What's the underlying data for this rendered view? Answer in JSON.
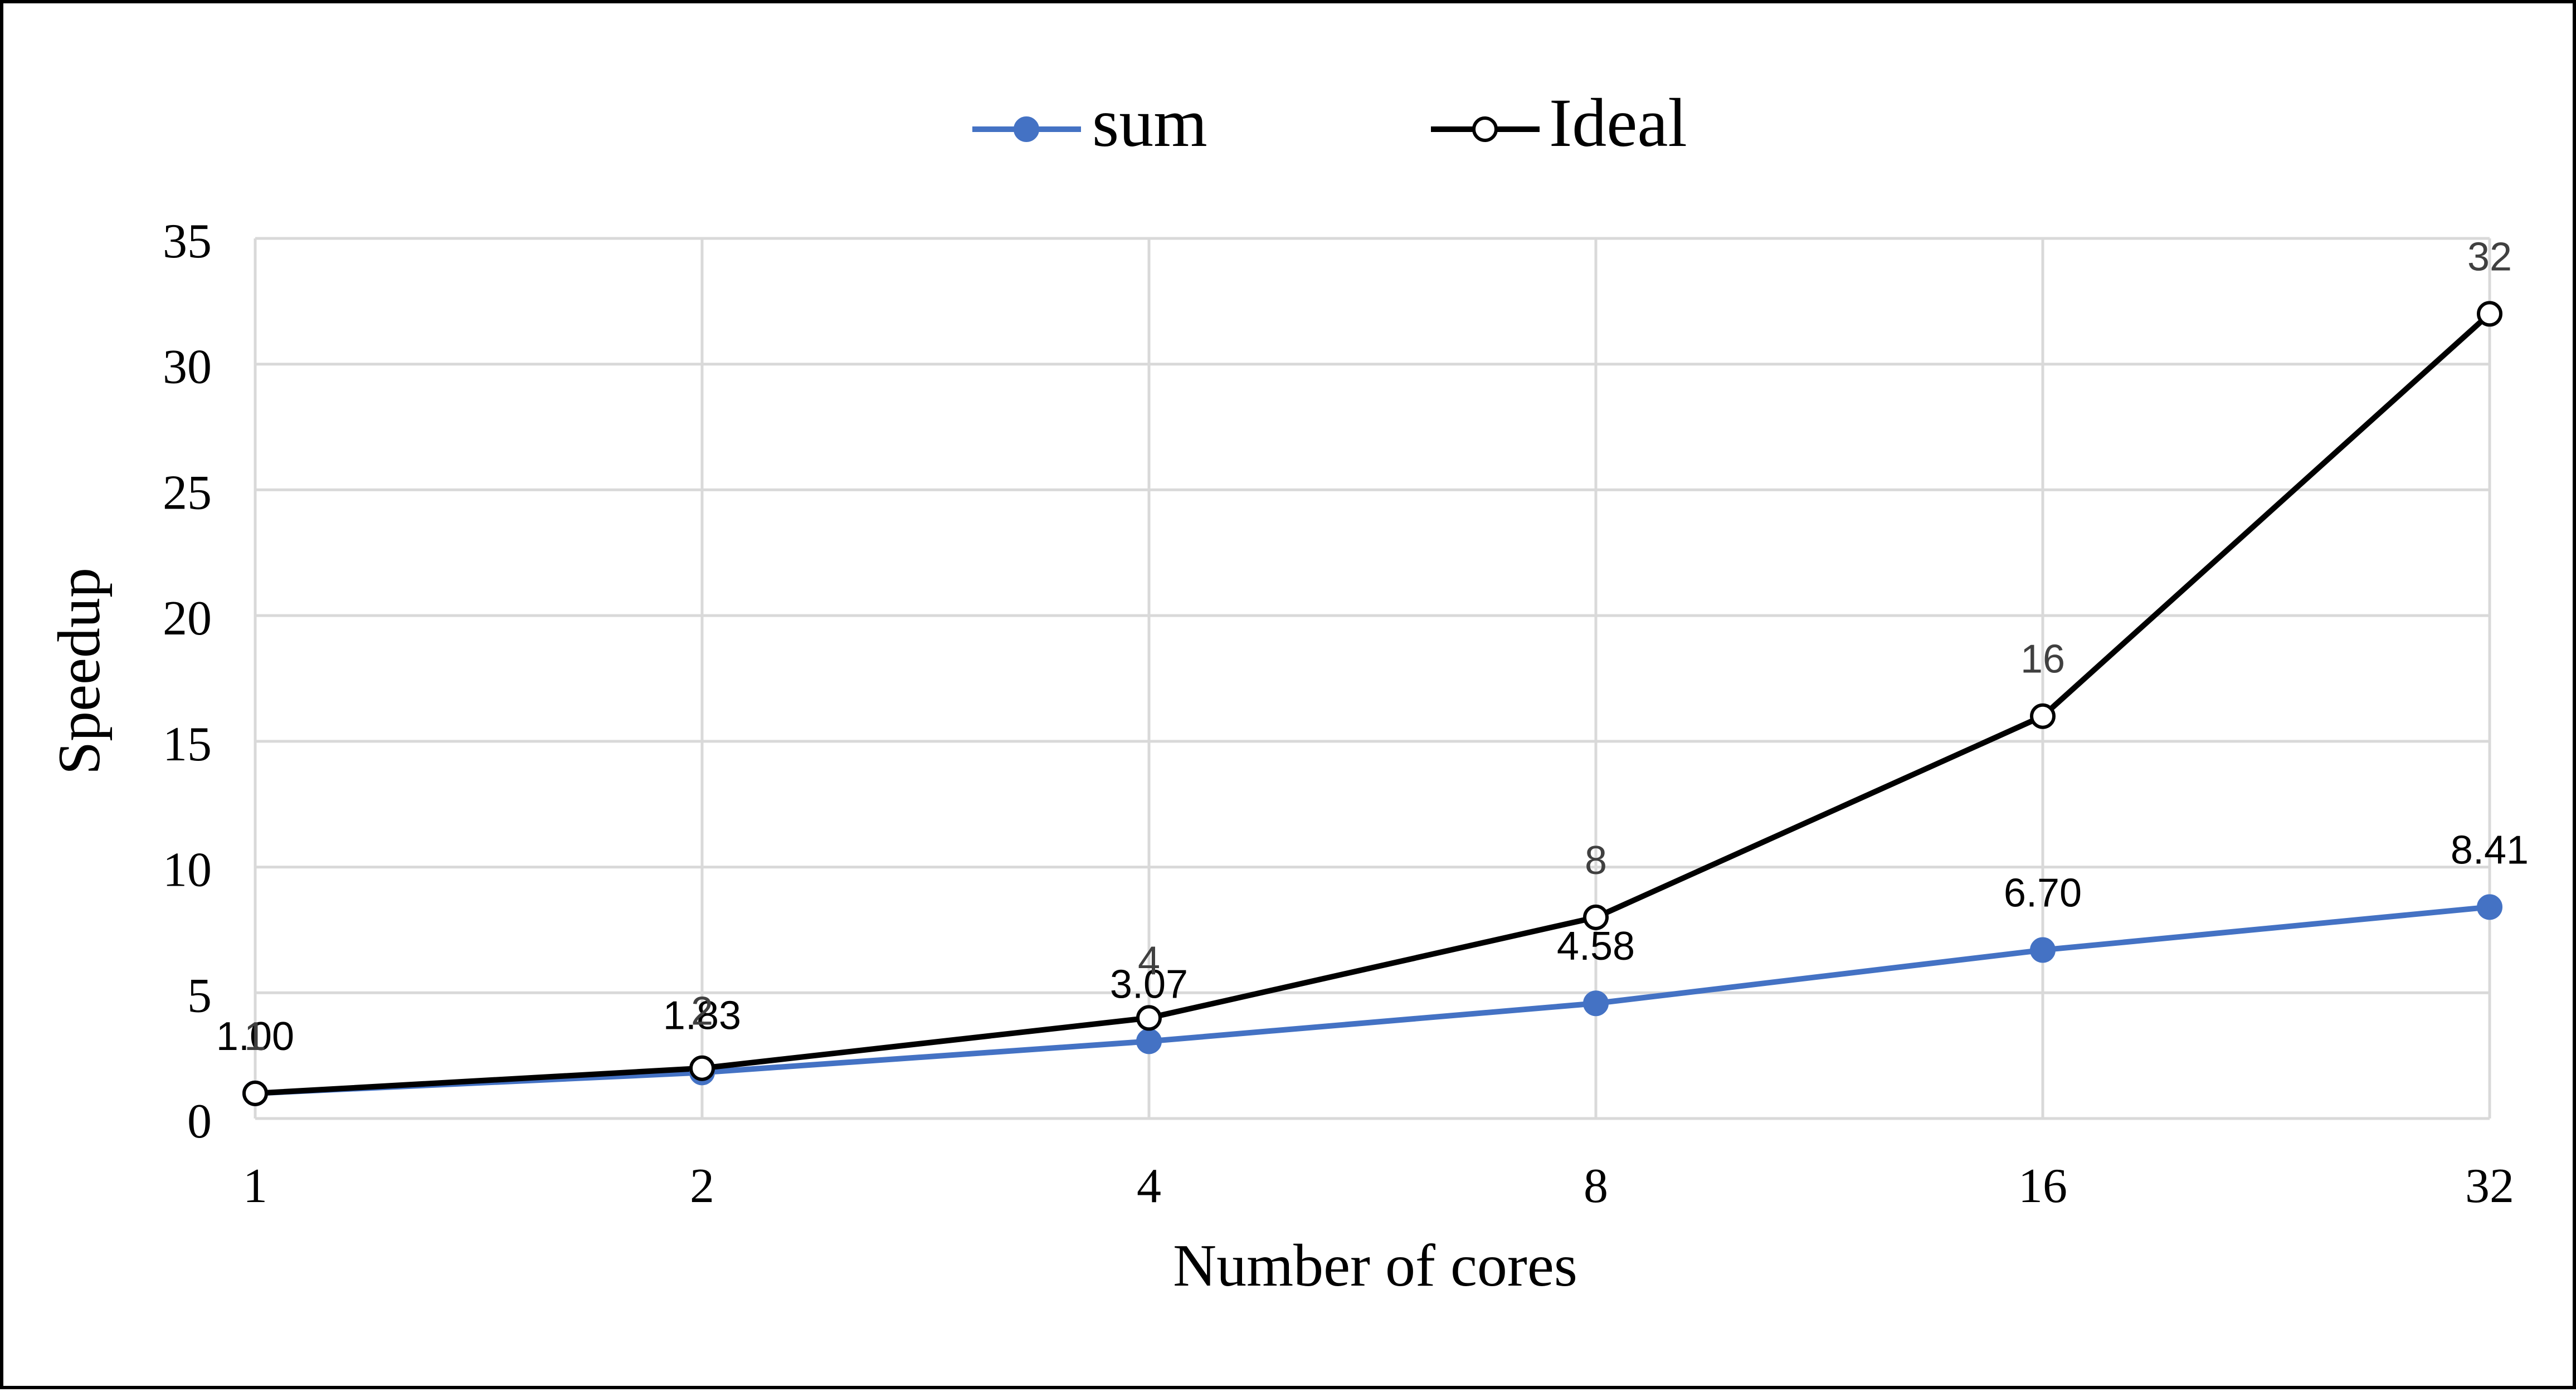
{
  "chart_data": {
    "type": "line",
    "title": "",
    "xlabel": "Number of cores",
    "ylabel": "Speedup",
    "categories": [
      "1",
      "2",
      "4",
      "8",
      "16",
      "32"
    ],
    "ylim": [
      0,
      35
    ],
    "yticks": [
      0,
      5,
      10,
      15,
      20,
      25,
      30,
      35
    ],
    "ytick_labels": [
      "0",
      "5",
      "10",
      "15",
      "20",
      "25",
      "30",
      "35"
    ],
    "grid": "both",
    "legend_position": "top-center",
    "series": [
      {
        "name": "sum",
        "values": [
          1.0,
          1.83,
          3.07,
          4.58,
          6.7,
          8.41
        ],
        "labels": [
          "1.00",
          "1.83",
          "3.07",
          "4.58",
          "6.70",
          "8.41"
        ],
        "color": "#4472C4",
        "marker": "filled-circle"
      },
      {
        "name": "Ideal",
        "values": [
          1,
          2,
          4,
          8,
          16,
          32
        ],
        "labels": [
          "1",
          "2",
          "4",
          "8",
          "16",
          "32"
        ],
        "color": "#000000",
        "marker": "hollow-circle"
      }
    ]
  }
}
